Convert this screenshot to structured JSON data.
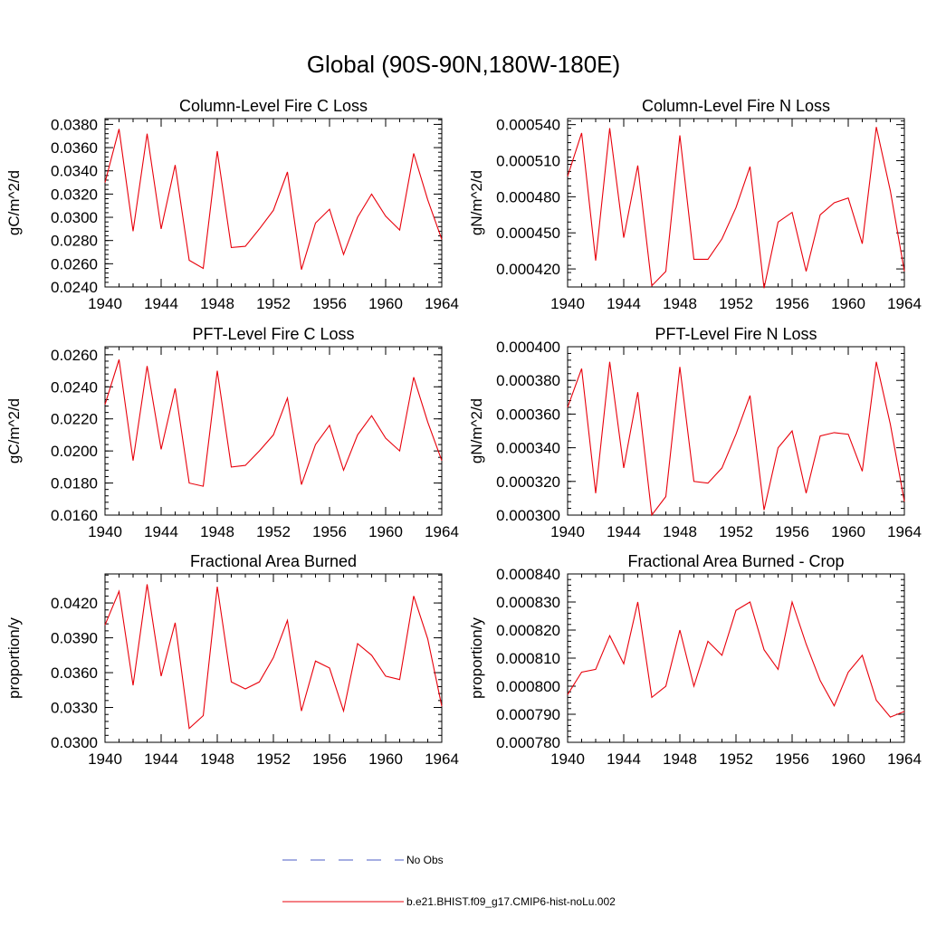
{
  "figure": {
    "title": "Global (90S-90N,180W-180E)"
  },
  "legend": {
    "items": [
      {
        "label": "No Obs",
        "color": "#4b5cc4",
        "style": "dashed"
      },
      {
        "label": "b.e21.BHIST.f09_g17.CMIP6-hist-noLu.002",
        "color": "#e8000b",
        "style": "solid"
      }
    ]
  },
  "chart_data": [
    {
      "type": "line",
      "title": "Column-Level Fire C Loss",
      "xlabel": "",
      "ylabel": "gC/m^2/d",
      "xlim": [
        1940,
        1964
      ],
      "ylim": [
        0.024,
        0.0385
      ],
      "xticks": [
        1940,
        1944,
        1948,
        1952,
        1956,
        1960,
        1964
      ],
      "yticks": [
        0.024,
        0.026,
        0.028,
        0.03,
        0.032,
        0.034,
        0.036,
        0.038
      ],
      "ytick_labels": [
        "0.0240",
        "0.0260",
        "0.0280",
        "0.0300",
        "0.0320",
        "0.0340",
        "0.0360",
        "0.0380"
      ],
      "x": [
        1940,
        1941,
        1942,
        1943,
        1944,
        1945,
        1946,
        1947,
        1948,
        1949,
        1950,
        1951,
        1952,
        1953,
        1954,
        1955,
        1956,
        1957,
        1958,
        1959,
        1960,
        1961,
        1962,
        1963,
        1964
      ],
      "series": [
        {
          "name": "b.e21.BHIST.f09_g17.CMIP6-hist-noLu.002",
          "color": "#e8000b",
          "values": [
            0.033,
            0.0376,
            0.0288,
            0.0372,
            0.029,
            0.0345,
            0.0263,
            0.0256,
            0.0357,
            0.0274,
            0.0275,
            0.029,
            0.0306,
            0.0339,
            0.0255,
            0.0295,
            0.0307,
            0.0268,
            0.03,
            0.032,
            0.0301,
            0.0289,
            0.0355,
            0.0315,
            0.0281
          ]
        }
      ]
    },
    {
      "type": "line",
      "title": "Column-Level Fire N Loss",
      "xlabel": "",
      "ylabel": "gN/m^2/d",
      "xlim": [
        1940,
        1964
      ],
      "ylim": [
        0.000405,
        0.000545
      ],
      "xticks": [
        1940,
        1944,
        1948,
        1952,
        1956,
        1960,
        1964
      ],
      "yticks": [
        0.00042,
        0.00045,
        0.00048,
        0.00051,
        0.00054
      ],
      "ytick_labels": [
        "0.000420",
        "0.000450",
        "0.000480",
        "0.000510",
        "0.000540"
      ],
      "x": [
        1940,
        1941,
        1942,
        1943,
        1944,
        1945,
        1946,
        1947,
        1948,
        1949,
        1950,
        1951,
        1952,
        1953,
        1954,
        1955,
        1956,
        1957,
        1958,
        1959,
        1960,
        1961,
        1962,
        1963,
        1964
      ],
      "series": [
        {
          "name": "b.e21.BHIST.f09_g17.CMIP6-hist-noLu.002",
          "color": "#e8000b",
          "values": [
            0.000497,
            0.000533,
            0.000427,
            0.000537,
            0.000446,
            0.000506,
            0.000406,
            0.000418,
            0.000531,
            0.000428,
            0.000428,
            0.000445,
            0.000471,
            0.000505,
            0.000404,
            0.000459,
            0.000467,
            0.000418,
            0.000465,
            0.000475,
            0.000479,
            0.000441,
            0.000538,
            0.000485,
            0.000418
          ]
        }
      ]
    },
    {
      "type": "line",
      "title": "PFT-Level Fire C Loss",
      "xlabel": "",
      "ylabel": "gC/m^2/d",
      "xlim": [
        1940,
        1964
      ],
      "ylim": [
        0.016,
        0.0265
      ],
      "xticks": [
        1940,
        1944,
        1948,
        1952,
        1956,
        1960,
        1964
      ],
      "yticks": [
        0.016,
        0.018,
        0.02,
        0.022,
        0.024,
        0.026
      ],
      "ytick_labels": [
        "0.0160",
        "0.0180",
        "0.0200",
        "0.0220",
        "0.0240",
        "0.0260"
      ],
      "x": [
        1940,
        1941,
        1942,
        1943,
        1944,
        1945,
        1946,
        1947,
        1948,
        1949,
        1950,
        1951,
        1952,
        1953,
        1954,
        1955,
        1956,
        1957,
        1958,
        1959,
        1960,
        1961,
        1962,
        1963,
        1964
      ],
      "series": [
        {
          "name": "b.e21.BHIST.f09_g17.CMIP6-hist-noLu.002",
          "color": "#e8000b",
          "values": [
            0.0229,
            0.0257,
            0.0194,
            0.0253,
            0.0201,
            0.0239,
            0.018,
            0.0178,
            0.025,
            0.019,
            0.0191,
            0.02,
            0.021,
            0.0233,
            0.0179,
            0.0204,
            0.0216,
            0.0188,
            0.021,
            0.0222,
            0.0208,
            0.02,
            0.0246,
            0.0218,
            0.0194
          ]
        }
      ]
    },
    {
      "type": "line",
      "title": "PFT-Level Fire N Loss",
      "xlabel": "",
      "ylabel": "gN/m^2/d",
      "xlim": [
        1940,
        1964
      ],
      "ylim": [
        0.0003,
        0.0004
      ],
      "xticks": [
        1940,
        1944,
        1948,
        1952,
        1956,
        1960,
        1964
      ],
      "yticks": [
        0.0003,
        0.00032,
        0.00034,
        0.00036,
        0.00038,
        0.0004
      ],
      "ytick_labels": [
        "0.000300",
        "0.000320",
        "0.000340",
        "0.000360",
        "0.000380",
        "0.000400"
      ],
      "x": [
        1940,
        1941,
        1942,
        1943,
        1944,
        1945,
        1946,
        1947,
        1948,
        1949,
        1950,
        1951,
        1952,
        1953,
        1954,
        1955,
        1956,
        1957,
        1958,
        1959,
        1960,
        1961,
        1962,
        1963,
        1964
      ],
      "series": [
        {
          "name": "b.e21.BHIST.f09_g17.CMIP6-hist-noLu.002",
          "color": "#e8000b",
          "values": [
            0.000364,
            0.000387,
            0.000313,
            0.000391,
            0.000328,
            0.000373,
            0.0003,
            0.000311,
            0.000388,
            0.00032,
            0.000319,
            0.000328,
            0.000348,
            0.000371,
            0.000303,
            0.00034,
            0.00035,
            0.000313,
            0.000347,
            0.000349,
            0.000348,
            0.000326,
            0.000391,
            0.000354,
            0.000308
          ]
        }
      ]
    },
    {
      "type": "line",
      "title": "Fractional Area Burned",
      "xlabel": "",
      "ylabel": "proportion/y",
      "xlim": [
        1940,
        1964
      ],
      "ylim": [
        0.03,
        0.0445
      ],
      "xticks": [
        1940,
        1944,
        1948,
        1952,
        1956,
        1960,
        1964
      ],
      "yticks": [
        0.03,
        0.033,
        0.036,
        0.039,
        0.042
      ],
      "ytick_labels": [
        "0.0300",
        "0.0330",
        "0.0360",
        "0.0390",
        "0.0420"
      ],
      "x": [
        1940,
        1941,
        1942,
        1943,
        1944,
        1945,
        1946,
        1947,
        1948,
        1949,
        1950,
        1951,
        1952,
        1953,
        1954,
        1955,
        1956,
        1957,
        1958,
        1959,
        1960,
        1961,
        1962,
        1963,
        1964
      ],
      "series": [
        {
          "name": "b.e21.BHIST.f09_g17.CMIP6-hist-noLu.002",
          "color": "#e8000b",
          "values": [
            0.0401,
            0.043,
            0.0349,
            0.0436,
            0.0357,
            0.0403,
            0.0312,
            0.0323,
            0.0434,
            0.0352,
            0.0346,
            0.0352,
            0.0373,
            0.0405,
            0.0327,
            0.037,
            0.0364,
            0.0327,
            0.0385,
            0.0375,
            0.0357,
            0.0354,
            0.0426,
            0.0389,
            0.0331
          ]
        }
      ]
    },
    {
      "type": "line",
      "title": "Fractional Area Burned - Crop",
      "xlabel": "",
      "ylabel": "proportion/y",
      "xlim": [
        1940,
        1964
      ],
      "ylim": [
        0.00078,
        0.00084
      ],
      "xticks": [
        1940,
        1944,
        1948,
        1952,
        1956,
        1960,
        1964
      ],
      "yticks": [
        0.00078,
        0.00079,
        0.0008,
        0.00081,
        0.00082,
        0.00083,
        0.00084
      ],
      "ytick_labels": [
        "0.000780",
        "0.000790",
        "0.000800",
        "0.000810",
        "0.000820",
        "0.000830",
        "0.000840"
      ],
      "x": [
        1940,
        1941,
        1942,
        1943,
        1944,
        1945,
        1946,
        1947,
        1948,
        1949,
        1950,
        1951,
        1952,
        1953,
        1954,
        1955,
        1956,
        1957,
        1958,
        1959,
        1960,
        1961,
        1962,
        1963,
        1964
      ],
      "series": [
        {
          "name": "b.e21.BHIST.f09_g17.CMIP6-hist-noLu.002",
          "color": "#e8000b",
          "values": [
            0.000797,
            0.000805,
            0.000806,
            0.000818,
            0.000808,
            0.00083,
            0.000796,
            0.0008,
            0.00082,
            0.0008,
            0.000816,
            0.000811,
            0.000827,
            0.00083,
            0.000813,
            0.000806,
            0.00083,
            0.000815,
            0.000802,
            0.000793,
            0.000805,
            0.000811,
            0.000795,
            0.000789,
            0.000791
          ]
        }
      ]
    }
  ]
}
